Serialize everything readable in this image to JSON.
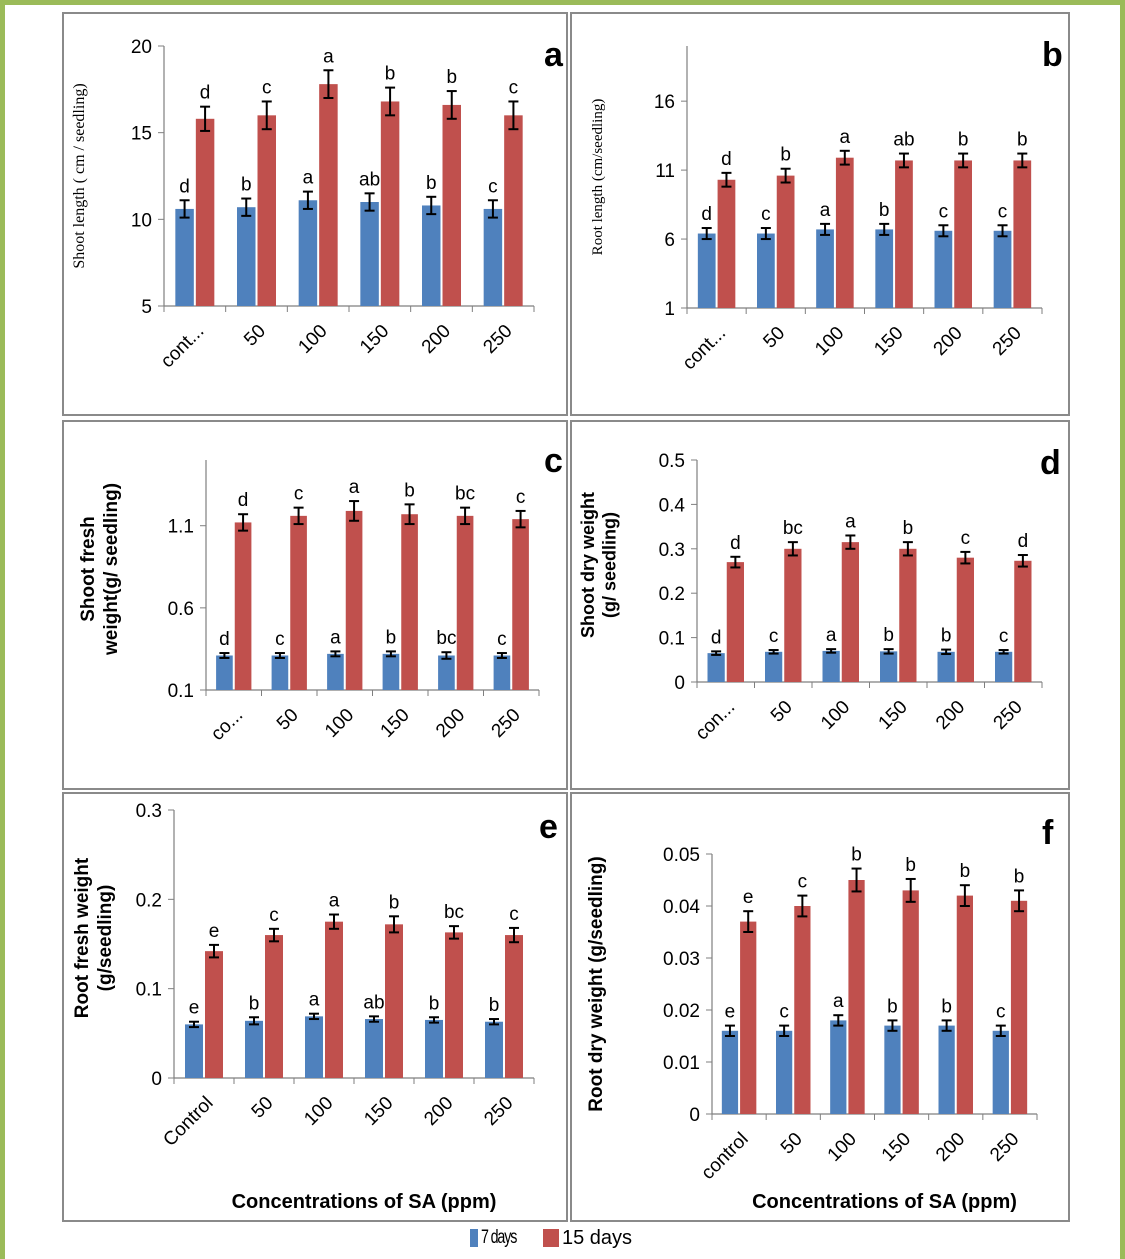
{
  "colors": {
    "series7": "#4f81bd",
    "series15": "#c0504d"
  },
  "legend": {
    "item7": "7 days",
    "item15": "15 days"
  },
  "caption": "",
  "chart_data": [
    {
      "id": "a",
      "type": "bar",
      "letter": "a",
      "ylabel": "Shoot length ( cm / seedling)",
      "xlabel": "",
      "categories": [
        "cont...",
        "50",
        "100",
        "150",
        "200",
        "250"
      ],
      "ylim": [
        5,
        20
      ],
      "yticks": [
        5,
        10,
        15,
        20
      ],
      "series": [
        {
          "values": [
            10.6,
            10.7,
            11.1,
            11.0,
            10.8,
            10.6
          ],
          "errors": [
            0.5,
            0.5,
            0.5,
            0.5,
            0.5,
            0.5
          ],
          "labels": [
            "d",
            "b",
            "a",
            "ab",
            "b",
            "c"
          ]
        },
        {
          "values": [
            15.8,
            16.0,
            17.8,
            16.8,
            16.6,
            16.0
          ],
          "errors": [
            0.7,
            0.8,
            0.8,
            0.8,
            0.8,
            0.8
          ],
          "labels": [
            "d",
            "c",
            "a",
            "b",
            "b",
            "c"
          ]
        }
      ]
    },
    {
      "id": "b",
      "type": "bar",
      "letter": "b",
      "ylabel": "Root length (cm/seedling)",
      "xlabel": "",
      "categories": [
        "cont...",
        "50",
        "100",
        "150",
        "200",
        "250"
      ],
      "ylim": [
        1,
        20
      ],
      "yticks": [
        1,
        6,
        11,
        16
      ],
      "series": [
        {
          "values": [
            6.4,
            6.4,
            6.7,
            6.7,
            6.6,
            6.6
          ],
          "errors": [
            0.4,
            0.4,
            0.4,
            0.4,
            0.4,
            0.4
          ],
          "labels": [
            "d",
            "c",
            "a",
            "b",
            "c",
            "c"
          ]
        },
        {
          "values": [
            10.3,
            10.6,
            11.9,
            11.7,
            11.7,
            11.7
          ],
          "errors": [
            0.5,
            0.5,
            0.5,
            0.5,
            0.5,
            0.5
          ],
          "labels": [
            "d",
            "b",
            "a",
            "ab",
            "b",
            "b"
          ]
        }
      ]
    },
    {
      "id": "c",
      "type": "bar",
      "letter": "c",
      "ylabel": "Shoot fresh weight(g/ seedling)",
      "xlabel": "",
      "categories": [
        "co...",
        "50",
        "100",
        "150",
        "200",
        "250"
      ],
      "ylim": [
        0.1,
        1.5
      ],
      "yticks": [
        0.1,
        0.6,
        1.1
      ],
      "series": [
        {
          "values": [
            0.31,
            0.31,
            0.32,
            0.32,
            0.31,
            0.31
          ],
          "errors": [
            0.015,
            0.015,
            0.015,
            0.015,
            0.02,
            0.015
          ],
          "labels": [
            "d",
            "c",
            "a",
            "b",
            "bc",
            "c"
          ]
        },
        {
          "values": [
            1.12,
            1.16,
            1.19,
            1.17,
            1.16,
            1.14
          ],
          "errors": [
            0.05,
            0.05,
            0.06,
            0.06,
            0.05,
            0.05
          ],
          "labels": [
            "d",
            "c",
            "a",
            "b",
            "bc",
            "c"
          ]
        }
      ]
    },
    {
      "id": "d",
      "type": "bar",
      "letter": "d",
      "ylabel": "Shoot dry weight (g/ seedling)",
      "xlabel": "",
      "categories": [
        "con...",
        "50",
        "100",
        "150",
        "200",
        "250"
      ],
      "ylim": [
        0,
        0.5
      ],
      "yticks": [
        0,
        0.1,
        0.2,
        0.3,
        0.4,
        0.5
      ],
      "series": [
        {
          "values": [
            0.065,
            0.068,
            0.07,
            0.069,
            0.068,
            0.068
          ],
          "errors": [
            0.004,
            0.004,
            0.004,
            0.005,
            0.005,
            0.004
          ],
          "labels": [
            "d",
            "c",
            "a",
            "b",
            "b",
            "c"
          ]
        },
        {
          "values": [
            0.27,
            0.3,
            0.315,
            0.3,
            0.28,
            0.273
          ],
          "errors": [
            0.012,
            0.015,
            0.015,
            0.015,
            0.013,
            0.013
          ],
          "labels": [
            "d",
            "bc",
            "a",
            "b",
            "c",
            "d"
          ]
        }
      ]
    },
    {
      "id": "e",
      "type": "bar",
      "letter": "e",
      "ylabel": "Root fresh weight (g/seedling)",
      "xlabel": "Concentrations of SA (ppm)",
      "categories": [
        "Control",
        "50",
        "100",
        "150",
        "200",
        "250"
      ],
      "ylim": [
        0,
        0.3
      ],
      "yticks": [
        0,
        0.1,
        0.2,
        0.3
      ],
      "ytickLabels": [
        "0",
        "0.1",
        "0.2",
        "0.3"
      ],
      "series": [
        {
          "values": [
            0.06,
            0.064,
            0.069,
            0.066,
            0.065,
            0.063
          ],
          "errors": [
            0.003,
            0.004,
            0.003,
            0.003,
            0.003,
            0.003
          ],
          "labels": [
            "e",
            "b",
            "a",
            "ab",
            "b",
            "b"
          ]
        },
        {
          "values": [
            0.142,
            0.16,
            0.175,
            0.172,
            0.163,
            0.16
          ],
          "errors": [
            0.007,
            0.007,
            0.008,
            0.009,
            0.007,
            0.008
          ],
          "labels": [
            "e",
            "c",
            "a",
            "b",
            "bc",
            "c"
          ]
        }
      ]
    },
    {
      "id": "f",
      "type": "bar",
      "letter": "f",
      "ylabel": "Root dry weight (g/seedling)",
      "xlabel": "Concentrations of SA (ppm)",
      "categories": [
        "control",
        "50",
        "100",
        "150",
        "200",
        "250"
      ],
      "ylim": [
        0,
        0.05
      ],
      "yticks": [
        0,
        0.01,
        0.02,
        0.03,
        0.04,
        0.05
      ],
      "series": [
        {
          "values": [
            0.016,
            0.016,
            0.018,
            0.017,
            0.017,
            0.016
          ],
          "errors": [
            0.001,
            0.001,
            0.001,
            0.001,
            0.001,
            0.001
          ],
          "labels": [
            "e",
            "c",
            "a",
            "b",
            "b",
            "c"
          ]
        },
        {
          "values": [
            0.037,
            0.04,
            0.045,
            0.043,
            0.042,
            0.041
          ],
          "errors": [
            0.002,
            0.002,
            0.0022,
            0.0022,
            0.002,
            0.002
          ],
          "labels": [
            "e",
            "c",
            "b",
            "b",
            "b",
            "b"
          ]
        }
      ]
    }
  ]
}
